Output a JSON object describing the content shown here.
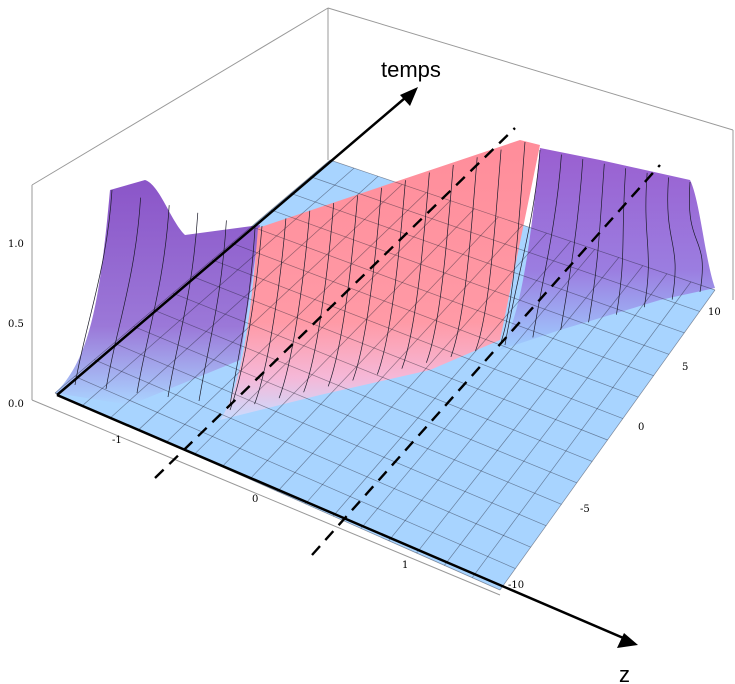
{
  "chart_data": {
    "type": "surface3d",
    "title": "",
    "annotations": {
      "time_axis_label": "temps",
      "z_axis_label": "z"
    },
    "axes": {
      "z": {
        "range": [
          -1.5,
          1.6
        ],
        "ticks": [
          -1,
          0,
          1
        ],
        "tick_labels": [
          "-1",
          "0",
          "1"
        ]
      },
      "t": {
        "range": [
          -10,
          10
        ],
        "ticks": [
          -10,
          -5,
          0,
          5,
          10
        ],
        "tick_labels": [
          "-10",
          "-5",
          "0",
          "5",
          "10"
        ]
      },
      "amplitude": {
        "range": [
          0,
          1.0
        ],
        "ticks": [
          0,
          0.5,
          1.0
        ],
        "tick_labels": [
          "0.0",
          "0.5",
          "1.0"
        ]
      }
    },
    "surface": {
      "description_of_shape": "high amplitude for z outside the band, a pulse that drifts in z as t increases",
      "z_samples": [
        -1.5,
        -1.0,
        -0.5,
        0.0,
        0.5,
        1.0,
        1.5
      ],
      "t_samples": [
        -10,
        -5,
        0,
        5,
        10
      ],
      "ridge_center_z_vs_t": {
        "t": [
          -10,
          10
        ],
        "z_center": [
          -0.35,
          0.5
        ]
      },
      "max_amplitude": 1.0
    },
    "dashed_guides": 2,
    "grid": false
  }
}
